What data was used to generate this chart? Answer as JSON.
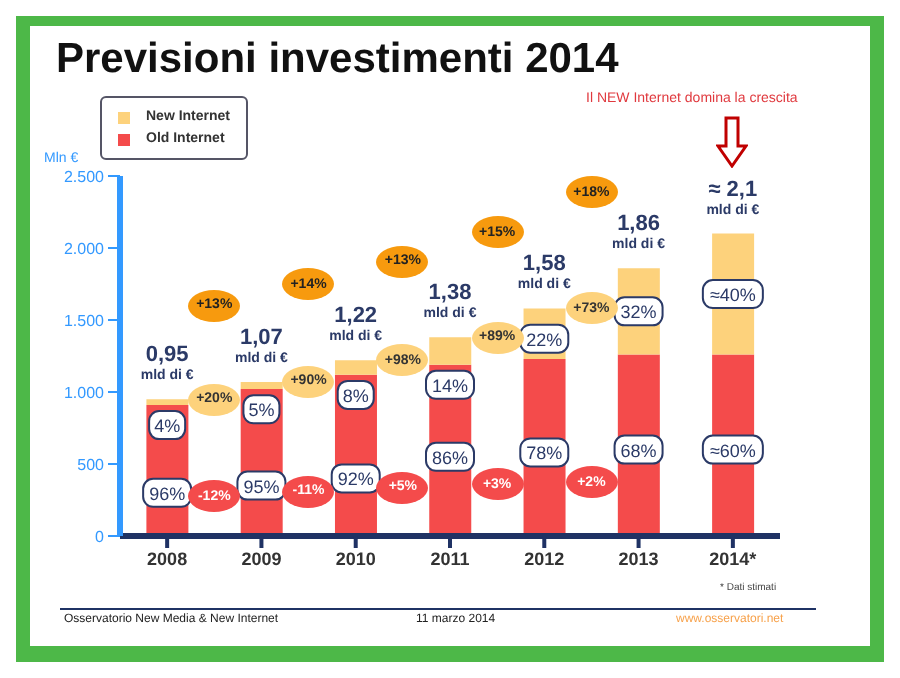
{
  "chart_data": {
    "type": "bar",
    "title": "Previsioni investimenti 2014",
    "ylabel": "Mln €",
    "categories": [
      "2008",
      "2009",
      "2010",
      "2011",
      "2012",
      "2013",
      "2014*"
    ],
    "stacked": true,
    "series": [
      {
        "name": "Old Internet",
        "color": "#f44b4b",
        "values": [
          910,
          1020,
          1120,
          1190,
          1230,
          1260,
          1260
        ]
      },
      {
        "name": "New Internet",
        "color": "#fdd27c",
        "values": [
          40,
          50,
          100,
          190,
          350,
          600,
          840
        ]
      }
    ],
    "ylim": [
      0,
      2500
    ],
    "yticks": [
      0,
      500,
      {
        "value": 1000,
        "label": "1.000"
      },
      {
        "value": 1500,
        "label": "1.500"
      },
      {
        "value": 2000,
        "label": "2.000"
      },
      {
        "value": 2500,
        "label": "2.500"
      }
    ],
    "grid": false,
    "legend": "top left",
    "annotations": [
      "+13%",
      "+14%",
      "+13%",
      "+15%",
      "+18%",
      "+20%",
      "+90%",
      "+98%",
      "+89%",
      "+73%",
      "-12%",
      "-11%",
      "+5%",
      "+3%",
      "+2%",
      "Il NEW Internet domina la crescita",
      "* Dati stimati",
      "Osservatorio New Media & New Internet",
      "11 marzo 2014",
      "www.osservatori.net",
      {
        "text": "0,95 mld di €",
        "x": "2008",
        "y": 950
      },
      {
        "text": "1,07 mld di €",
        "x": "2009",
        "y": 1070
      },
      {
        "text": "1,22 mld di €",
        "x": "2010",
        "y": 1220
      },
      {
        "text": "1,38 mld di €",
        "x": "2011",
        "y": 1380
      },
      {
        "text": "1,58 mld di €",
        "x": "2012",
        "y": 1580
      },
      {
        "text": "1,86 mld di €",
        "x": "2013",
        "y": 1860
      },
      {
        "text": "≈ 2,1 mld di €",
        "x": "2014*",
        "y": 2100
      },
      {
        "text": "96%",
        "x": "2008",
        "y": 300
      },
      {
        "text": "95%",
        "x": "2009",
        "y": 350
      },
      {
        "text": "92%",
        "x": "2010",
        "y": 400
      },
      {
        "text": "86%",
        "x": "2011",
        "y": 550
      },
      {
        "text": "78%",
        "x": "2012",
        "y": 580
      },
      {
        "text": "68%",
        "x": "2013",
        "y": 600
      },
      {
        "text": "≈60%",
        "x": "2014*",
        "y": 600
      },
      {
        "text": "4%",
        "x": "2008",
        "y": 770
      },
      {
        "text": "5%",
        "x": "2009",
        "y": 880
      },
      {
        "text": "8%",
        "x": "2010",
        "y": 980
      },
      {
        "text": "14%",
        "x": "2011",
        "y": 1050
      },
      {
        "text": "22%",
        "x": "2012",
        "y": 1370
      },
      {
        "text": "32%",
        "x": "2013",
        "y": 1560
      },
      {
        "text": "≈40%",
        "x": "2014*",
        "y": 1680
      }
    ]
  }
}
